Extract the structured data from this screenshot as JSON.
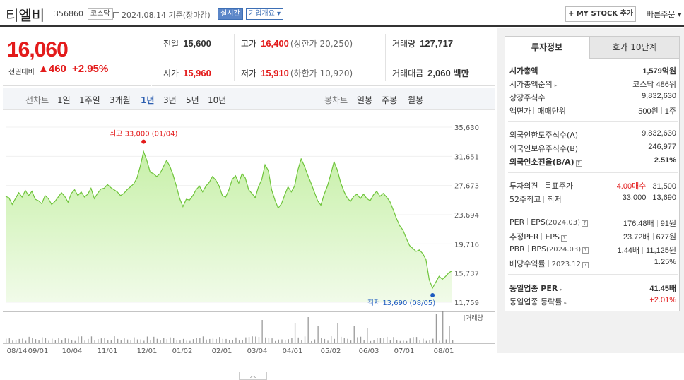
{
  "header": {
    "name": "티엘비",
    "code": "356860",
    "market": "코스닥",
    "date": "2024.08.14 기준(장마감)",
    "realtime": "실시간",
    "company_info": "기업개요",
    "my_stock": "+ MY STOCK 추가",
    "fast_order": "빠른주문"
  },
  "price": {
    "current": "16,060",
    "change_label": "전일대비",
    "change": "▲460",
    "change_pct": "+2.95%",
    "colors": {
      "up": "#e31b1b",
      "down": "#1d5bbf"
    }
  },
  "stats": {
    "prev_label": "전일",
    "prev": "15,600",
    "high_label": "고가",
    "high": "16,400",
    "upper_limit": "(상한가 20,250)",
    "volume_label": "거래량",
    "volume": "127,717",
    "open_label": "시가",
    "open": "15,960",
    "low_label": "저가",
    "low": "15,910",
    "lower_limit": "(하한가 10,920)",
    "amount_label": "거래대금",
    "amount": "2,060",
    "amount_unit": "백만"
  },
  "periods": {
    "line_title": "선차트",
    "line": [
      "1일",
      "1주일",
      "3개월",
      "1년",
      "3년",
      "5년",
      "10년"
    ],
    "active": "1년",
    "candle_title": "봉차트",
    "candle": [
      "일봉",
      "주봉",
      "월봉"
    ]
  },
  "chart_data": {
    "type": "area",
    "y_ticks": [
      "35,630",
      "31,651",
      "27,673",
      "23,694",
      "19,716",
      "15,737",
      "11,759"
    ],
    "ylim": [
      11759,
      35630
    ],
    "x_ticks": [
      "08/14",
      "09/01",
      "10/04",
      "11/01",
      "12/01",
      "01/02",
      "02/01",
      "03/04",
      "04/01",
      "05/02",
      "06/03",
      "07/01",
      "08/01"
    ],
    "high_annotation": "최고 33,000 (01/04)",
    "low_annotation": "최저 13,690 (08/05)",
    "volume_label": "거래량",
    "values": [
      26200,
      26000,
      25100,
      25900,
      26700,
      26100,
      27000,
      26300,
      26900,
      25800,
      25600,
      25200,
      26300,
      25900,
      25100,
      25500,
      26100,
      26700,
      26200,
      25400,
      26600,
      27100,
      26300,
      26800,
      26100,
      26500,
      27300,
      25900,
      26600,
      27200,
      27300,
      27800,
      27400,
      27100,
      26800,
      26300,
      26600,
      27100,
      27500,
      27900,
      28700,
      30300,
      32300,
      31100,
      29500,
      29300,
      28900,
      29300,
      30200,
      31100,
      30300,
      29100,
      27600,
      25900,
      24800,
      25800,
      25700,
      26300,
      27100,
      27600,
      26800,
      27600,
      28100,
      28900,
      28400,
      27600,
      26300,
      26100,
      27100,
      28500,
      29000,
      28000,
      29300,
      28700,
      27100,
      26600,
      26000,
      27500,
      28500,
      30500,
      29700,
      27100,
      25700,
      24600,
      25200,
      26400,
      27500,
      26800,
      27600,
      29800,
      31300,
      30300,
      29100,
      28000,
      26800,
      25600,
      25000,
      26500,
      27600,
      29200,
      30900,
      29800,
      28100,
      26900,
      26000,
      25500,
      26200,
      26500,
      25900,
      26500,
      25900,
      25600,
      26400,
      26900,
      26200,
      26600,
      26100,
      25500,
      24400,
      23200,
      22200,
      21600,
      20500,
      19500,
      19100,
      18700,
      18900,
      18400,
      17600,
      14800,
      13690,
      14500,
      15300,
      14900,
      15300,
      15800,
      16060
    ],
    "volume_peaks": [
      [
        78,
        8
      ],
      [
        88,
        7
      ],
      [
        92,
        9
      ],
      [
        95,
        6
      ],
      [
        101,
        7
      ],
      [
        106,
        6
      ],
      [
        110,
        5
      ],
      [
        131,
        10
      ],
      [
        133,
        11
      ],
      [
        135,
        6
      ]
    ],
    "colors": {
      "line": "#6ec43a",
      "fill_top": "#c7f0a8",
      "fill_bottom": "#f1fbe9",
      "high": "#e31b1b",
      "low": "#1d5bbf"
    }
  },
  "invest": {
    "tab1": "투자정보",
    "tab2": "호가 10단계",
    "market_cap_label": "시가총액",
    "market_cap": "1,579억원",
    "cap_rank_label": "시가총액순위",
    "cap_rank": "코스닥 486위",
    "shares_label": "상장주식수",
    "shares": "9,832,630",
    "par_label": "액면가",
    "unit_label": "매매단위",
    "par": "500원",
    "unit": "1주",
    "foreign_limit_label": "외국인한도주식수(A)",
    "foreign_limit": "9,832,630",
    "foreign_hold_label": "외국인보유주식수(B)",
    "foreign_hold": "246,977",
    "foreign_ratio_label": "외국인소진율(B/A)",
    "foreign_ratio": "2.51%",
    "opinion_label": "투자의견",
    "target_label": "목표주가",
    "opinion": "4.00매수",
    "target": "31,500",
    "week52_high_label": "52주최고",
    "week52_low_label": "최저",
    "week52_high": "33,000",
    "week52_low": "13,690",
    "per_label": "PER",
    "eps_label": "EPS",
    "eps_period": "(2024.03)",
    "per": "176.48배",
    "eps": "91원",
    "est_per_label": "추정PER",
    "est_eps_label": "EPS",
    "est_per": "23.72배",
    "est_eps": "677원",
    "pbr_label": "PBR",
    "bps_label": "BPS",
    "bps_period": "(2024.03)",
    "pbr": "1.44배",
    "bps": "11,125원",
    "div_label": "배당수익률",
    "div_period": "2023.12",
    "div": "1.25%",
    "sector_per_label": "동일업종 PER",
    "sector_per": "41.45배",
    "sector_rate_label": "동일업종 등락률",
    "sector_rate": "+2.01%"
  }
}
